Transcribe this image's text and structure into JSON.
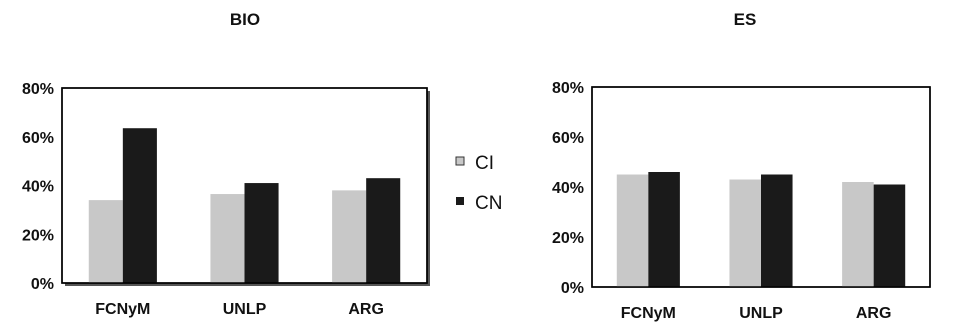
{
  "chart_data": [
    {
      "type": "bar",
      "title": "BIO",
      "categories": [
        "FCNyM",
        "UNLP",
        "ARG"
      ],
      "ylim": [
        0,
        80
      ],
      "yticks": [
        "0%",
        "20%",
        "40%",
        "60%",
        "80%"
      ],
      "series": [
        {
          "name": "CI",
          "color": "#c8c8c8",
          "values": [
            34,
            36.5,
            38
          ]
        },
        {
          "name": "CN",
          "color": "#1a1a1a",
          "values": [
            63.5,
            41,
            43
          ]
        }
      ]
    },
    {
      "type": "bar",
      "title": "ES",
      "categories": [
        "FCNyM",
        "UNLP",
        "ARG"
      ],
      "ylim": [
        0,
        80
      ],
      "yticks": [
        "0%",
        "20%",
        "40%",
        "60%",
        "80%"
      ],
      "series": [
        {
          "name": "CI",
          "color": "#c8c8c8",
          "values": [
            45,
            43,
            42
          ]
        },
        {
          "name": "CN",
          "color": "#1a1a1a",
          "values": [
            46,
            45,
            41
          ]
        }
      ]
    }
  ],
  "legend": {
    "placement": "center",
    "items": [
      {
        "label": "CI",
        "color": "#c8c8c8"
      },
      {
        "label": "CN",
        "color": "#1a1a1a"
      }
    ]
  }
}
